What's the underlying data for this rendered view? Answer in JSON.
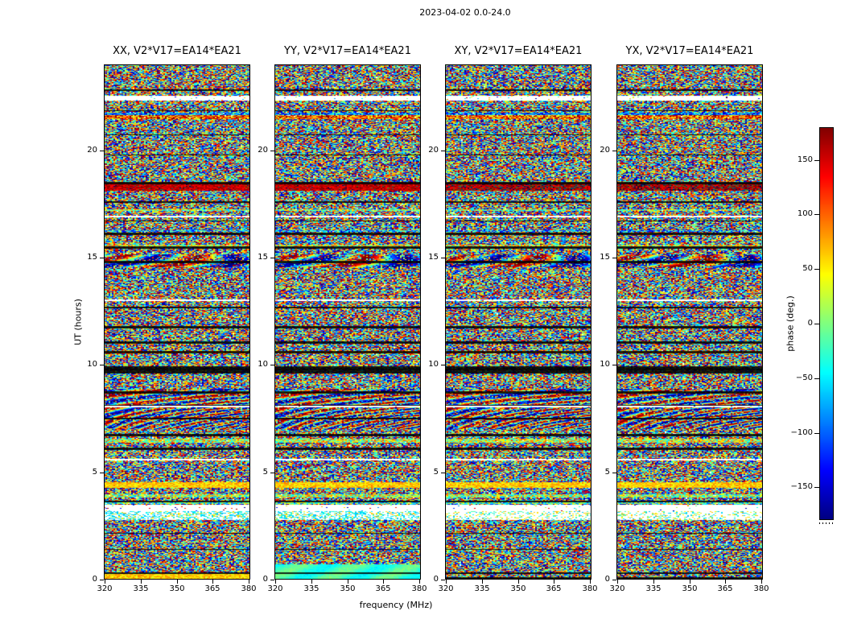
{
  "chart_data": {
    "type": "heatmap",
    "title": "2023-04-02 0.0-24.0",
    "xlabel": "frequency (MHz)",
    "ylabel": "UT (hours)",
    "x_ticks": [
      "320",
      "335",
      "350",
      "365",
      "380"
    ],
    "x_tick_values": [
      320,
      335,
      350,
      365,
      380
    ],
    "x_range": [
      319.5,
      380.7
    ],
    "y_ticks": [
      "0",
      "5",
      "10",
      "15",
      "20"
    ],
    "y_tick_values": [
      0,
      5,
      10,
      15,
      20
    ],
    "y_range": [
      0,
      24
    ],
    "grid": false,
    "panels": [
      {
        "pol": "XX",
        "label": "XX, V2*V17=EA14*EA21"
      },
      {
        "pol": "YY",
        "label": "YY, V2*V17=EA14*EA21"
      },
      {
        "pol": "XY",
        "label": "XY, V2*V17=EA14*EA21"
      },
      {
        "pol": "YX",
        "label": "YX, V2*V17=EA14*EA21"
      }
    ],
    "colorbar": {
      "label": "phase (deg.)",
      "range": [
        -180,
        180
      ],
      "ticks": [
        "150",
        "100",
        "50",
        "0",
        "−50",
        "−100",
        "−150"
      ],
      "tick_values": [
        150,
        100,
        50,
        0,
        -50,
        -100,
        -150
      ],
      "colormap": "jet"
    },
    "data_description": "Visibility phase (deg.) of baseline V2*V17 = EA14*EA21 vs frequency (~320-380 MHz) and UT time (0-24 h); body of each panel is pseudo-random phase noise with horizontal flagged/RFI bands shared across polarization panels.",
    "features": [
      {
        "ut_start": 22.33,
        "ut_end": 22.55,
        "type": "white",
        "panels": [
          0,
          1,
          2,
          3
        ]
      },
      {
        "ut_start": 18.12,
        "ut_end": 18.48,
        "type": "red_band",
        "panels": [
          0,
          1,
          2,
          3
        ],
        "strong_panels": [
          0,
          1
        ]
      },
      {
        "ut_start": 16.86,
        "ut_end": 16.95,
        "type": "white",
        "panels": [
          0,
          1,
          2,
          3
        ]
      },
      {
        "ut_start": 14.55,
        "ut_end": 15.15,
        "type": "fringes",
        "panels": [
          0,
          1,
          2,
          3
        ]
      },
      {
        "ut_start": 12.97,
        "ut_end": 13.05,
        "type": "white",
        "panels": [
          0,
          1,
          2,
          3
        ]
      },
      {
        "ut_start": 9.6,
        "ut_end": 9.92,
        "type": "dark_band",
        "panels": [
          0,
          1,
          2,
          3
        ]
      },
      {
        "ut_start": 8.02,
        "ut_end": 8.1,
        "type": "white",
        "panels": [
          0,
          1,
          2,
          3
        ]
      },
      {
        "ut_start": 7.0,
        "ut_end": 8.9,
        "type": "fringes",
        "panels": [
          0,
          1,
          2,
          3
        ]
      },
      {
        "ut_start": 5.54,
        "ut_end": 5.62,
        "type": "white",
        "panels": [
          0,
          1,
          2,
          3
        ]
      },
      {
        "ut_start": 4.28,
        "ut_end": 4.52,
        "type": "yellow_band",
        "panels": [
          0,
          1,
          2,
          3
        ]
      },
      {
        "ut_start": 3.2,
        "ut_end": 3.5,
        "type": "white",
        "panels": [
          0,
          1,
          2,
          3
        ]
      },
      {
        "ut_start": 2.76,
        "ut_end": 3.2,
        "type": "cyan_white_band",
        "panels": [
          0,
          1,
          2,
          3
        ]
      },
      {
        "ut_start": 0.0,
        "ut_end": 0.73,
        "type": "green_band",
        "panels": [
          1
        ]
      },
      {
        "ut_start": 0.0,
        "ut_end": 0.25,
        "type": "yellow_band",
        "panels": [
          0
        ]
      },
      {
        "ut_start": 0.0,
        "ut_end": 0.1,
        "type": "dark_band",
        "panels": [
          2,
          3
        ]
      }
    ]
  }
}
